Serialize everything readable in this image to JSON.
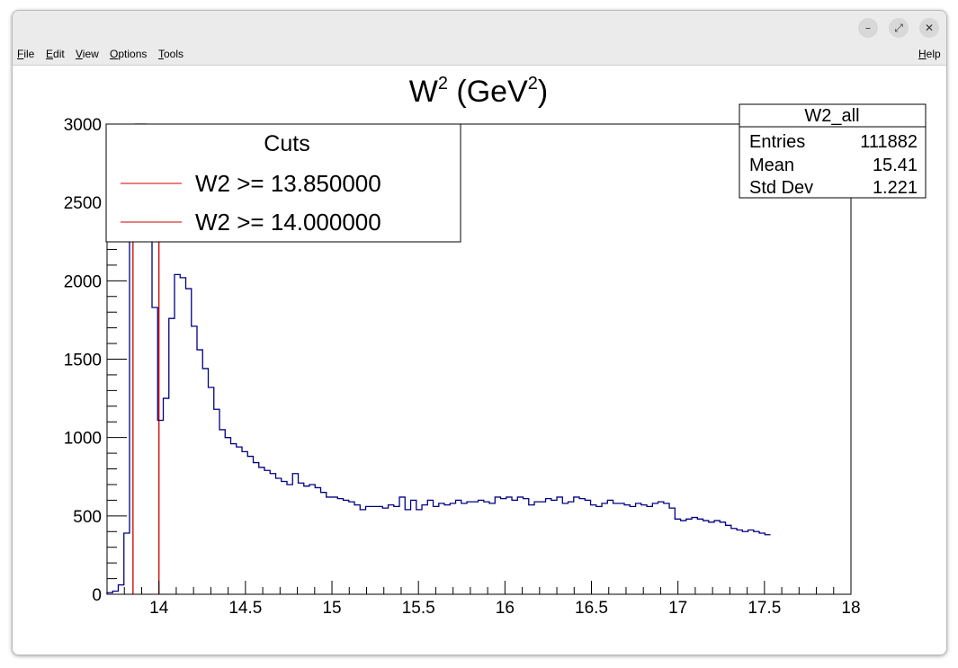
{
  "window": {
    "buttons": {
      "minimize": "–",
      "restore": "⤢",
      "close": "✕"
    }
  },
  "menubar": {
    "items": [
      {
        "label": "File",
        "u": "F",
        "rest": "ile"
      },
      {
        "label": "Edit",
        "u": "E",
        "rest": "dit"
      },
      {
        "label": "View",
        "u": "V",
        "rest": "iew"
      },
      {
        "label": "Options",
        "u": "O",
        "rest": "ptions"
      },
      {
        "label": "Tools",
        "u": "T",
        "rest": "ools"
      }
    ],
    "help": {
      "label": "Help",
      "u": "H",
      "rest": "elp"
    }
  },
  "colors": {
    "histogram": "#000080",
    "cut_lines": "#cc0000",
    "frame": "#000000"
  },
  "legend": {
    "title": "Cuts",
    "entries": [
      "W2 >= 13.850000",
      "W2 >= 14.000000"
    ]
  },
  "stats": {
    "name": "W2_all",
    "rows": [
      {
        "label": "Entries",
        "value": "111882"
      },
      {
        "label": "Mean",
        "value": "15.41"
      },
      {
        "label": "Std Dev",
        "value": "1.221"
      }
    ]
  },
  "chart_data": {
    "type": "histogram",
    "title": "W^2 (GeV^2)",
    "title_base": "W",
    "title_sup1": "2",
    "title_mid": " (GeV",
    "title_sup2": "2",
    "title_end": ")",
    "xlabel": "",
    "ylabel": "",
    "xlim": [
      13.7,
      18.0
    ],
    "ylim": [
      0,
      3000
    ],
    "x_ticks": [
      "14",
      "14.5",
      "15",
      "15.5",
      "16",
      "16.5",
      "17",
      "17.5",
      "18"
    ],
    "y_ticks": [
      "0",
      "500",
      "1000",
      "1500",
      "2000",
      "2500",
      "3000"
    ],
    "bin_start": 13.7,
    "bin_width": 0.0325,
    "counts": [
      10,
      20,
      60,
      390,
      2250,
      3100,
      3100,
      2250,
      1830,
      1110,
      1250,
      1760,
      2040,
      2020,
      1950,
      1710,
      1560,
      1440,
      1320,
      1180,
      1050,
      1000,
      960,
      940,
      910,
      880,
      840,
      810,
      790,
      770,
      740,
      720,
      700,
      770,
      710,
      690,
      700,
      680,
      650,
      620,
      620,
      610,
      600,
      590,
      570,
      540,
      560,
      560,
      560,
      550,
      570,
      560,
      620,
      540,
      600,
      540,
      570,
      600,
      560,
      580,
      570,
      580,
      600,
      580,
      590,
      590,
      600,
      590,
      580,
      620,
      610,
      620,
      600,
      620,
      610,
      570,
      590,
      590,
      610,
      600,
      620,
      580,
      590,
      620,
      610,
      600,
      570,
      560,
      580,
      600,
      580,
      580,
      570,
      560,
      580,
      570,
      560,
      580,
      590,
      580,
      550,
      480,
      470,
      480,
      490,
      480,
      470,
      460,
      470,
      460,
      440,
      420,
      410,
      400,
      410,
      400,
      390,
      380
    ],
    "cut_lines": [
      13.85,
      14.0
    ]
  }
}
